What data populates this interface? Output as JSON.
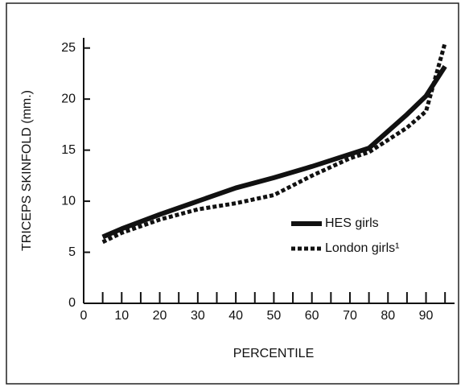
{
  "chart_data": {
    "type": "line",
    "y_label": "TRICEPS SKINFOLD (mm.)",
    "x_label": "PERCENTILE",
    "x": [
      5,
      10,
      20,
      30,
      40,
      50,
      60,
      70,
      75,
      85,
      90,
      95
    ],
    "series": [
      {
        "name": "HES girls",
        "color": "#111111",
        "style": "solid",
        "values": [
          6.5,
          7.3,
          8.7,
          10.0,
          11.3,
          12.3,
          13.4,
          14.6,
          15.2,
          18.5,
          20.3,
          23.2
        ]
      },
      {
        "name": "London girls¹",
        "color": "#111111",
        "style": "dashed",
        "values": [
          6.0,
          6.9,
          8.2,
          9.2,
          9.8,
          10.6,
          12.5,
          14.2,
          14.8,
          17.2,
          18.8,
          25.5
        ]
      }
    ],
    "xlim": [
      0,
      97.5
    ],
    "ylim": [
      0,
      26
    ],
    "xticks": [
      0,
      10,
      20,
      30,
      40,
      50,
      60,
      70,
      80,
      90
    ],
    "xminorticks": [
      5,
      15,
      25,
      35,
      45,
      55,
      65,
      75,
      85,
      95
    ],
    "yticks": [
      0,
      5,
      10,
      15,
      20,
      25
    ],
    "grid": false,
    "legend": "lower right"
  }
}
